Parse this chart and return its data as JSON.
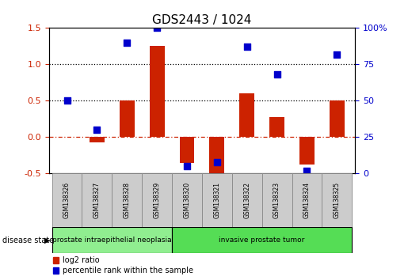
{
  "title": "GDS2443 / 1024",
  "samples": [
    "GSM138326",
    "GSM138327",
    "GSM138328",
    "GSM138329",
    "GSM138320",
    "GSM138321",
    "GSM138322",
    "GSM138323",
    "GSM138324",
    "GSM138325"
  ],
  "log2_ratio": [
    0.0,
    -0.07,
    0.5,
    1.25,
    -0.35,
    -0.5,
    0.6,
    0.28,
    -0.38,
    0.5
  ],
  "percentile_rank": [
    0.5,
    0.3,
    0.9,
    1.0,
    0.05,
    0.08,
    0.87,
    0.68,
    0.02,
    0.82
  ],
  "disease_groups": [
    {
      "label": "prostate intraepithelial neoplasia",
      "start": 0,
      "end": 4,
      "color": "#90EE90"
    },
    {
      "label": "invasive prostate tumor",
      "start": 4,
      "end": 10,
      "color": "#55DD55"
    }
  ],
  "bar_color": "#CC2200",
  "dot_color": "#0000CC",
  "ylim_left": [
    -0.5,
    1.5
  ],
  "ylim_right": [
    0,
    100
  ],
  "yticks_left": [
    -0.5,
    0.0,
    0.5,
    1.0,
    1.5
  ],
  "yticks_right": [
    0,
    25,
    50,
    75,
    100
  ],
  "hlines": [
    0.0,
    0.5,
    1.0
  ],
  "hline_styles": [
    "dashdot",
    "dotted",
    "dotted"
  ],
  "hline_colors": [
    "#CC2200",
    "#000000",
    "#000000"
  ],
  "bg_color": "#FFFFFF",
  "sample_bg_color": "#CCCCCC",
  "title_fontsize": 11,
  "axis_label_color_left": "#CC2200",
  "axis_label_color_right": "#0000CC",
  "bar_width": 0.5,
  "dot_size": 30
}
